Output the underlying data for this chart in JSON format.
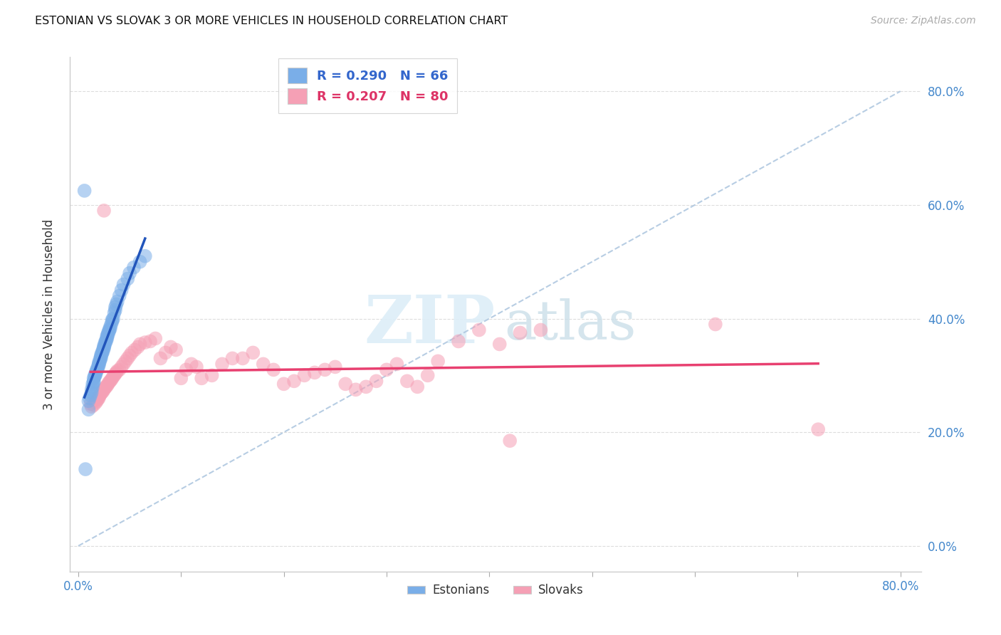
{
  "title": "ESTONIAN VS SLOVAK 3 OR MORE VEHICLES IN HOUSEHOLD CORRELATION CHART",
  "source": "Source: ZipAtlas.com",
  "ylabel": "3 or more Vehicles in Household",
  "ytick_values": [
    0.0,
    0.2,
    0.4,
    0.6,
    0.8
  ],
  "xtick_values": [
    0.0,
    0.1,
    0.2,
    0.3,
    0.4,
    0.5,
    0.6,
    0.7,
    0.8
  ],
  "xlim": [
    -0.008,
    0.82
  ],
  "ylim": [
    -0.045,
    0.86
  ],
  "estonian_color": "#7aaee8",
  "slovak_color": "#f5a0b5",
  "estonian_line_color": "#2255bb",
  "slovak_line_color": "#e84070",
  "diagonal_color": "#b0c8e0",
  "estonian_R": 0.29,
  "estonian_N": 66,
  "slovak_R": 0.207,
  "slovak_N": 80,
  "estonian_x": [
    0.01,
    0.01,
    0.011,
    0.012,
    0.013,
    0.013,
    0.014,
    0.014,
    0.015,
    0.015,
    0.015,
    0.016,
    0.016,
    0.017,
    0.017,
    0.018,
    0.018,
    0.019,
    0.019,
    0.02,
    0.02,
    0.02,
    0.021,
    0.021,
    0.022,
    0.022,
    0.022,
    0.023,
    0.023,
    0.024,
    0.024,
    0.025,
    0.025,
    0.025,
    0.026,
    0.026,
    0.027,
    0.027,
    0.028,
    0.028,
    0.028,
    0.029,
    0.029,
    0.03,
    0.03,
    0.031,
    0.031,
    0.032,
    0.033,
    0.033,
    0.034,
    0.035,
    0.036,
    0.036,
    0.037,
    0.038,
    0.04,
    0.042,
    0.044,
    0.048,
    0.05,
    0.054,
    0.06,
    0.065,
    0.006,
    0.007
  ],
  "estonian_y": [
    0.24,
    0.255,
    0.26,
    0.265,
    0.27,
    0.275,
    0.28,
    0.285,
    0.288,
    0.29,
    0.295,
    0.298,
    0.3,
    0.302,
    0.305,
    0.308,
    0.31,
    0.312,
    0.315,
    0.318,
    0.32,
    0.322,
    0.325,
    0.328,
    0.33,
    0.332,
    0.335,
    0.338,
    0.34,
    0.342,
    0.345,
    0.348,
    0.35,
    0.352,
    0.355,
    0.358,
    0.36,
    0.362,
    0.365,
    0.368,
    0.37,
    0.372,
    0.375,
    0.378,
    0.38,
    0.382,
    0.385,
    0.39,
    0.395,
    0.398,
    0.4,
    0.41,
    0.415,
    0.42,
    0.425,
    0.43,
    0.44,
    0.45,
    0.46,
    0.47,
    0.48,
    0.49,
    0.5,
    0.51,
    0.625,
    0.135
  ],
  "slovak_x": [
    0.012,
    0.013,
    0.015,
    0.017,
    0.018,
    0.019,
    0.02,
    0.02,
    0.021,
    0.022,
    0.023,
    0.024,
    0.025,
    0.026,
    0.027,
    0.028,
    0.029,
    0.03,
    0.031,
    0.032,
    0.033,
    0.034,
    0.035,
    0.036,
    0.037,
    0.038,
    0.04,
    0.042,
    0.044,
    0.046,
    0.048,
    0.05,
    0.052,
    0.055,
    0.058,
    0.06,
    0.065,
    0.07,
    0.075,
    0.08,
    0.085,
    0.09,
    0.095,
    0.1,
    0.105,
    0.11,
    0.115,
    0.12,
    0.13,
    0.14,
    0.15,
    0.16,
    0.17,
    0.18,
    0.19,
    0.2,
    0.21,
    0.22,
    0.23,
    0.24,
    0.25,
    0.26,
    0.27,
    0.28,
    0.29,
    0.3,
    0.31,
    0.32,
    0.33,
    0.34,
    0.35,
    0.37,
    0.39,
    0.41,
    0.43,
    0.45,
    0.025,
    0.62,
    0.72,
    0.42
  ],
  "slovak_y": [
    0.25,
    0.245,
    0.248,
    0.252,
    0.255,
    0.258,
    0.26,
    0.263,
    0.265,
    0.268,
    0.27,
    0.272,
    0.275,
    0.278,
    0.28,
    0.282,
    0.285,
    0.288,
    0.29,
    0.292,
    0.295,
    0.298,
    0.3,
    0.303,
    0.305,
    0.308,
    0.31,
    0.315,
    0.32,
    0.325,
    0.33,
    0.335,
    0.34,
    0.345,
    0.35,
    0.355,
    0.358,
    0.36,
    0.365,
    0.33,
    0.34,
    0.35,
    0.345,
    0.295,
    0.31,
    0.32,
    0.315,
    0.295,
    0.3,
    0.32,
    0.33,
    0.33,
    0.34,
    0.32,
    0.31,
    0.285,
    0.29,
    0.3,
    0.305,
    0.31,
    0.315,
    0.285,
    0.275,
    0.28,
    0.29,
    0.31,
    0.32,
    0.29,
    0.28,
    0.3,
    0.325,
    0.36,
    0.38,
    0.355,
    0.375,
    0.38,
    0.59,
    0.39,
    0.205,
    0.185
  ]
}
